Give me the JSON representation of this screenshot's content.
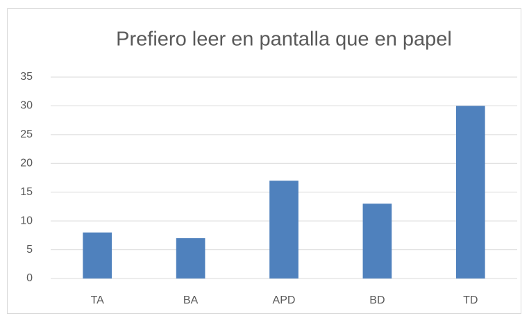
{
  "chart_data": {
    "type": "bar",
    "title": "Prefiero leer en pantalla que en papel",
    "categories": [
      "TA",
      "BA",
      "APD",
      "BD",
      "TD"
    ],
    "values": [
      8,
      7,
      17,
      13,
      30
    ],
    "color": "#4f81bd",
    "ylim": [
      0,
      35
    ],
    "yticks": [
      0,
      5,
      10,
      15,
      20,
      25,
      30,
      35
    ],
    "grid": true
  }
}
